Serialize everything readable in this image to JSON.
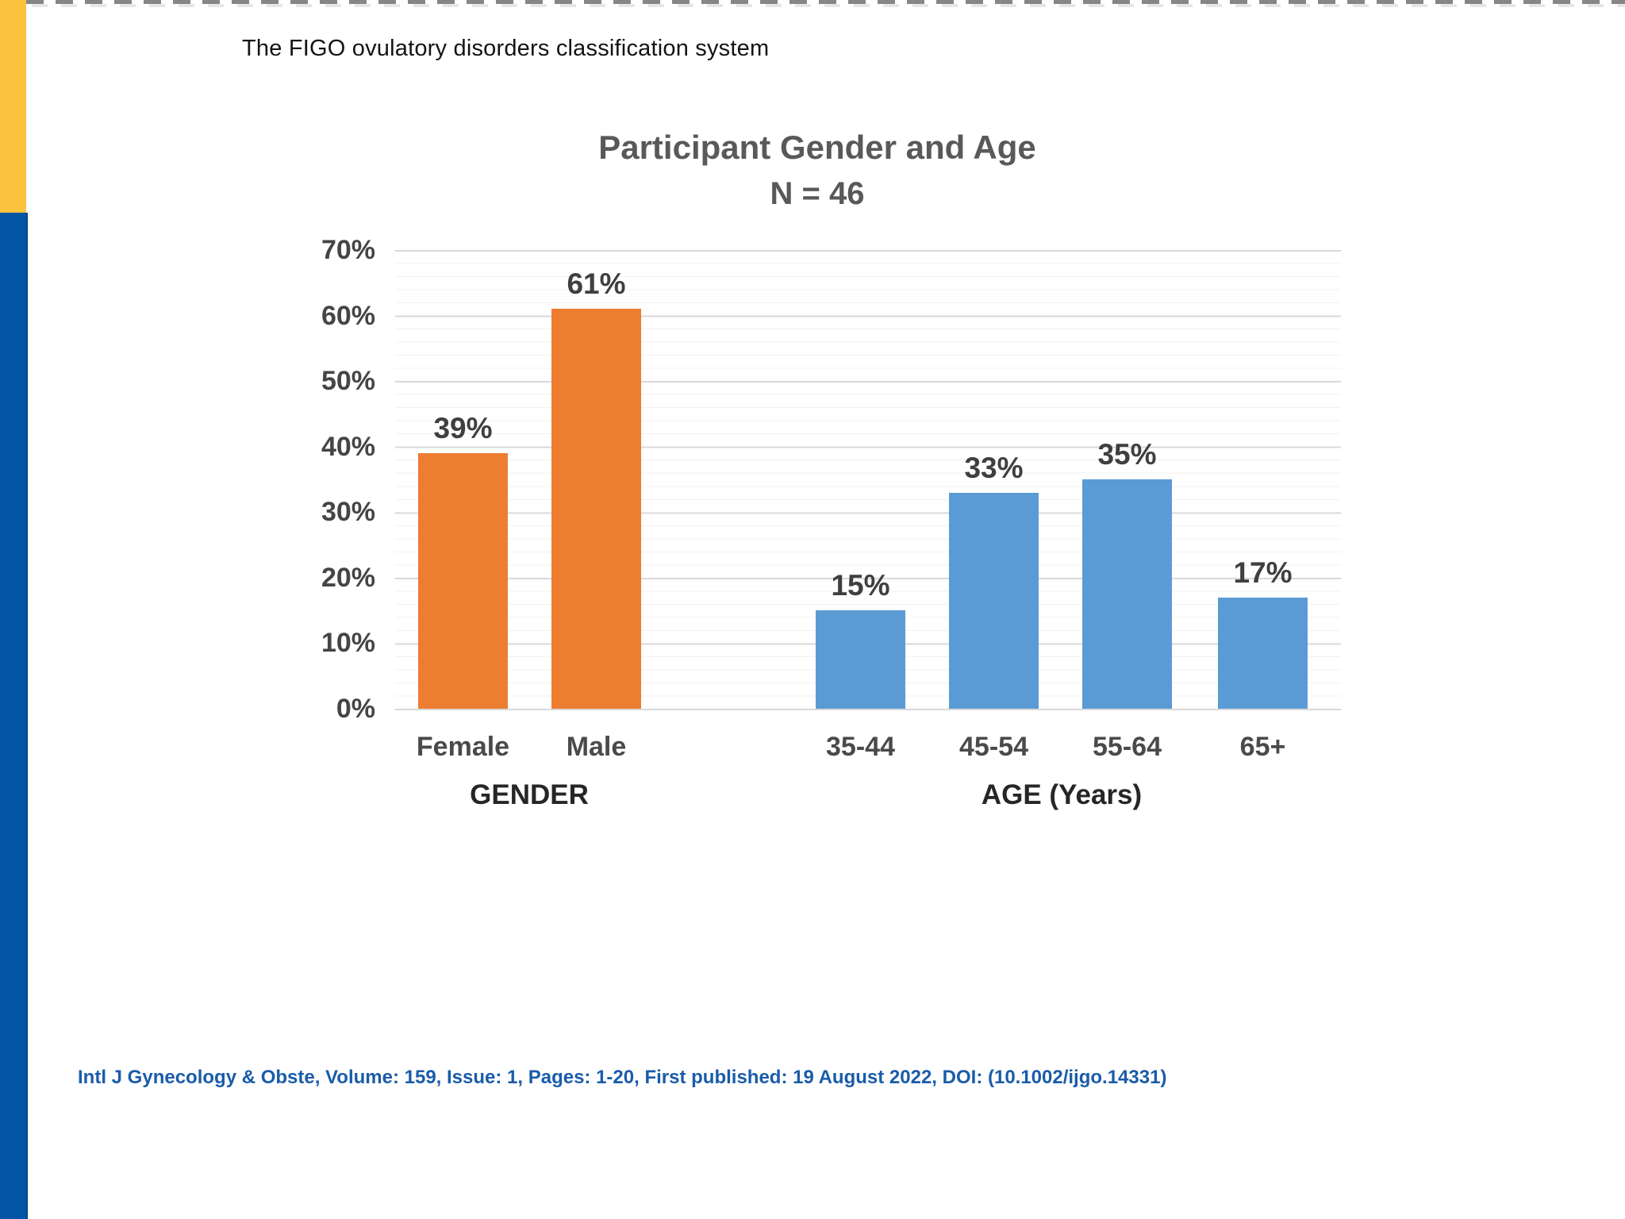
{
  "page": {
    "title": "The FIGO ovulatory disorders classification system",
    "citation": "Intl J Gynecology & Obste, Volume: 159, Issue: 1, Pages: 1-20, First published: 19 August 2022, DOI: (10.1002/ijgo.14331)",
    "accent_colors": {
      "sidebar_yellow": "#FCC43E",
      "sidebar_blue": "#0355A5",
      "citation_blue": "#1A5CA9",
      "bar_orange": "#ED7D31",
      "bar_blue": "#5B9BD5",
      "gridline_gray": "#D9D9D9",
      "chart_text_gray": "#595959"
    }
  },
  "chart_data": {
    "type": "bar",
    "title": "Participant Gender and Age",
    "subtitle": "N = 46",
    "categories": [
      "Female",
      "Male",
      "35-44",
      "45-54",
      "55-64",
      "65+"
    ],
    "values": [
      39,
      61,
      15,
      33,
      35,
      17
    ],
    "series": [
      {
        "name": "GENDER",
        "categories": [
          "Female",
          "Male"
        ],
        "values": [
          39,
          61
        ],
        "value_labels": [
          "39%",
          "61%"
        ],
        "color": "#ED7D31"
      },
      {
        "name": "AGE (Years)",
        "categories": [
          "35-44",
          "45-54",
          "55-64",
          "65+"
        ],
        "values": [
          15,
          33,
          35,
          17
        ],
        "value_labels": [
          "15%",
          "33%",
          "35%",
          "17%"
        ],
        "color": "#5B9BD5"
      }
    ],
    "yticks": [
      "70%",
      "60%",
      "50%",
      "40%",
      "30%",
      "20%",
      "10%",
      "0%"
    ],
    "ylim": [
      0,
      70
    ],
    "grid": "horizontal major lines every 10% with faint minor lines",
    "legend": "none"
  }
}
